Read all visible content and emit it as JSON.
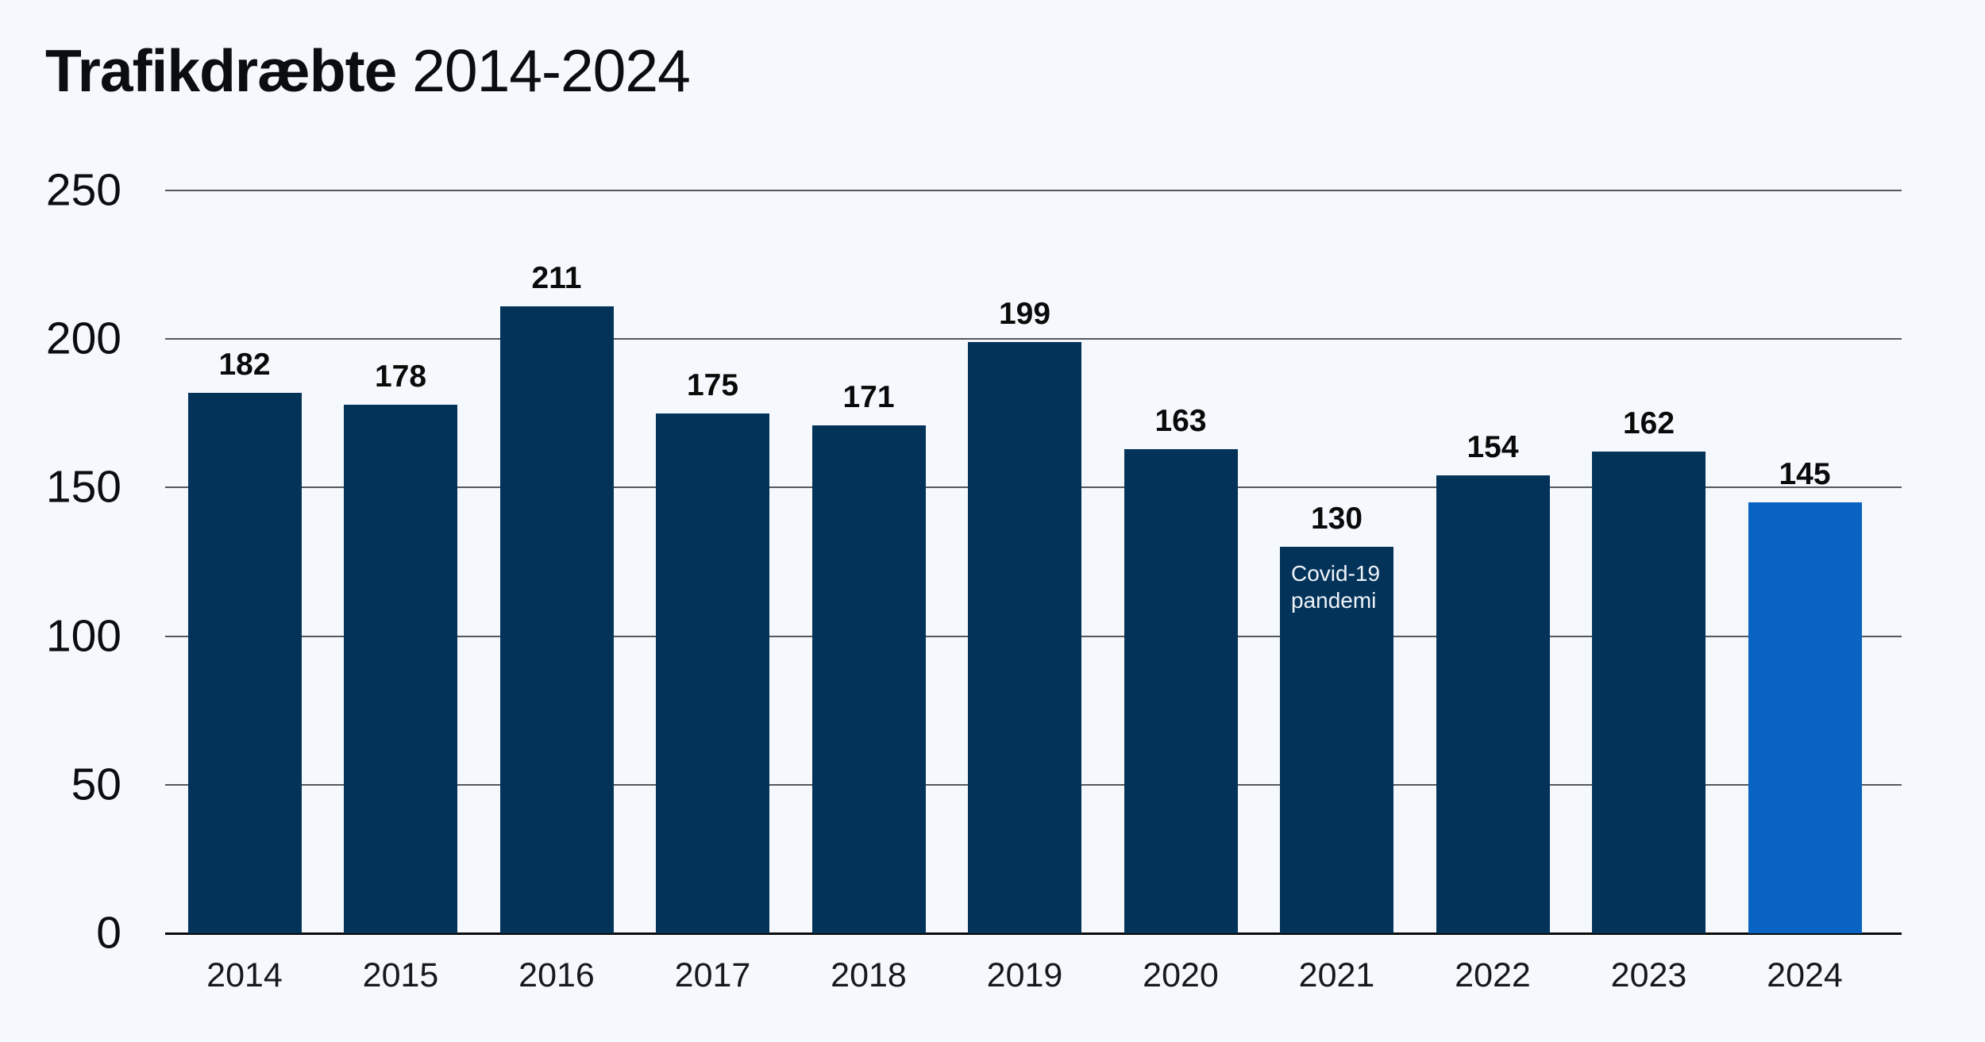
{
  "title": {
    "bold": "Trafikdræbte",
    "regular": "2014-2024"
  },
  "colors": {
    "background": "#F5F9FD",
    "bar": "#04335A",
    "bar_highlight": "#0863C2",
    "gridline": "#55595E",
    "baseline": "#0A0A0A",
    "text": "#0B0D10",
    "annotation_text": "#EFF4F9"
  },
  "chart_data": {
    "type": "bar",
    "title": "Trafikdræbte 2014-2024",
    "xlabel": "",
    "ylabel": "",
    "categories": [
      "2014",
      "2015",
      "2016",
      "2017",
      "2018",
      "2019",
      "2020",
      "2021",
      "2022",
      "2023",
      "2024"
    ],
    "values": [
      182,
      178,
      211,
      175,
      171,
      199,
      163,
      130,
      154,
      162,
      145
    ],
    "ylim": [
      0,
      250
    ],
    "yticks": [
      0,
      50,
      100,
      150,
      200,
      250
    ],
    "grid": true,
    "legend": "none",
    "bar_color": "#04335A",
    "highlight": {
      "index": 10,
      "color": "#0863C2"
    },
    "annotation": {
      "bar_index": 7,
      "lines": [
        "Covid-19",
        "pandemi"
      ],
      "color": "#EFF4F9"
    }
  }
}
